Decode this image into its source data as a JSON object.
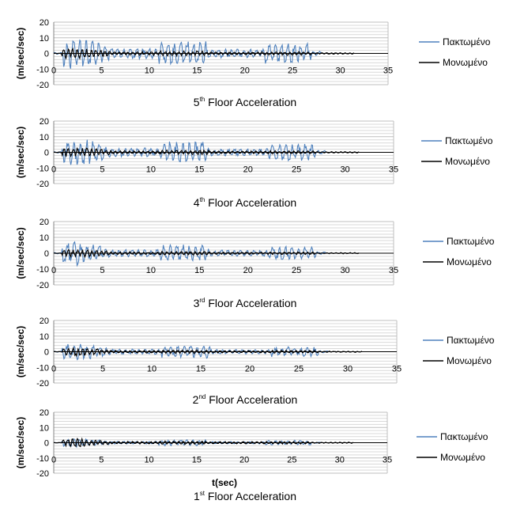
{
  "colors": {
    "fixed": "#4f81bd",
    "isolated": "#000000",
    "grid": "#bfbfbf",
    "axis": "#868686"
  },
  "chart_data": [
    {
      "type": "line",
      "title": {
        "main": "5",
        "sup": "th",
        "rest": " Floor Acceleration"
      },
      "ylabel": "(m/sec/sec)",
      "xlabel": "",
      "xlim": [
        0,
        35
      ],
      "ylim": [
        -20,
        20
      ],
      "xticks": [
        "0",
        "5",
        "10",
        "15",
        "20",
        "25",
        "30",
        "35"
      ],
      "yticks": [
        "20",
        "10",
        "0",
        "-10",
        "-20"
      ],
      "grid": true,
      "legend": "right",
      "series": [
        {
          "name": "Πακτωμένο",
          "amp": 12,
          "duration": 28
        },
        {
          "name": "Μονωμένο",
          "amp": 4,
          "duration": 31.5
        }
      ]
    },
    {
      "type": "line",
      "title": {
        "main": "4",
        "sup": "th",
        "rest": " Floor Acceleration"
      },
      "ylabel": "(m/sec/sec)",
      "xlabel": "",
      "xlim": [
        0,
        35
      ],
      "ylim": [
        -20,
        20
      ],
      "xticks": [
        "0",
        "5",
        "10",
        "15",
        "20",
        "25",
        "30",
        "35"
      ],
      "yticks": [
        "20",
        "10",
        "0",
        "-10",
        "-20"
      ],
      "grid": true,
      "legend": "right",
      "series": [
        {
          "name": "Πακτωμένο",
          "amp": 10,
          "duration": 28
        },
        {
          "name": "Μονωμένο",
          "amp": 3.5,
          "duration": 31.5
        }
      ]
    },
    {
      "type": "line",
      "title": {
        "main": "3",
        "sup": "rd",
        "rest": " Floor Acceleration"
      },
      "ylabel": "(m/sec/sec)",
      "xlabel": "",
      "xlim": [
        0,
        35
      ],
      "ylim": [
        -20,
        20
      ],
      "xticks": [
        "0",
        "5",
        "10",
        "15",
        "20",
        "25",
        "30",
        "35"
      ],
      "yticks": [
        "20",
        "10",
        "0",
        "-10",
        "-20"
      ],
      "grid": true,
      "legend": "right",
      "series": [
        {
          "name": "Πακτωμένο",
          "amp": 8,
          "duration": 28
        },
        {
          "name": "Μονωμένο",
          "amp": 3,
          "duration": 31.5
        }
      ]
    },
    {
      "type": "line",
      "title": {
        "main": "2",
        "sup": "nd",
        "rest": " Floor Acceleration"
      },
      "ylabel": "(m/sec/sec)",
      "xlabel": "",
      "xlim": [
        0,
        35
      ],
      "ylim": [
        -20,
        20
      ],
      "xticks": [
        "0",
        "5",
        "10",
        "15",
        "20",
        "25",
        "30",
        "35"
      ],
      "yticks": [
        "20",
        "10",
        "0",
        "-10",
        "-20"
      ],
      "grid": true,
      "legend": "right",
      "series": [
        {
          "name": "Πακτωμένο",
          "amp": 6,
          "duration": 28
        },
        {
          "name": "Μονωμένο",
          "amp": 3,
          "duration": 31.5
        }
      ]
    },
    {
      "type": "line",
      "title": {
        "main": "1",
        "sup": "st",
        "rest": " Floor Acceleration"
      },
      "ylabel": "(m/sec/sec)",
      "xlabel": "t(sec)",
      "xlim": [
        0,
        35
      ],
      "ylim": [
        -20,
        20
      ],
      "xticks": [
        "0",
        "5",
        "10",
        "15",
        "20",
        "25",
        "30",
        "35"
      ],
      "yticks": [
        "20",
        "10",
        "0",
        "-10",
        "-20"
      ],
      "grid": true,
      "legend": "right",
      "series": [
        {
          "name": "Πακτωμένο",
          "amp": 3,
          "duration": 28
        },
        {
          "name": "Μονωμένο",
          "amp": 3,
          "duration": 31.5
        }
      ]
    }
  ]
}
